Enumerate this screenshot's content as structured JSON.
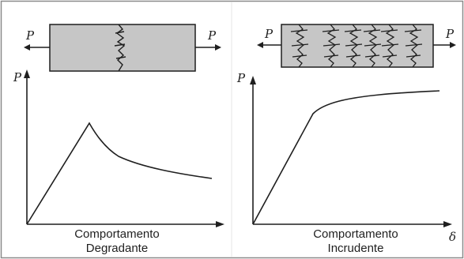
{
  "left_panel": {
    "force_left": "P",
    "force_right": "P",
    "y_axis": "P",
    "caption_line1": "Comportamento",
    "caption_line2": "Degradante"
  },
  "right_panel": {
    "force_left": "P",
    "force_right": "P",
    "y_axis": "P",
    "x_axis": "δ",
    "caption_line1": "Comportamento",
    "caption_line2": "Incrudente"
  },
  "colors": {
    "specimen_fill": "#c6c6c6",
    "ink": "#1f1f1f",
    "border": "#8a8a8a",
    "background": "#ffffff"
  },
  "icons": {
    "crack": "crack-zigzag"
  }
}
